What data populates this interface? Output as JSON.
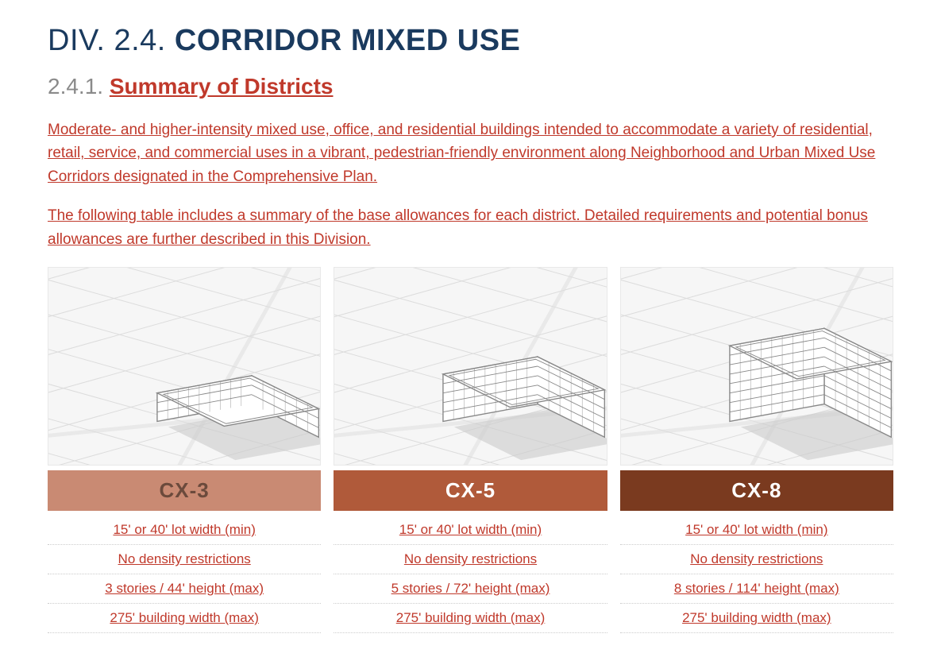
{
  "title_prefix": "DIV. 2.4. ",
  "title_main": "CORRIDOR MIXED USE",
  "subtitle_num": "2.4.1. ",
  "subtitle_link": "Summary of Districts",
  "para1": "Moderate- and higher-intensity mixed use, office, and residential buildings intended to accommodate a variety of residential, retail, service, and commercial uses in a vibrant, pedestrian-friendly environment along Neighborhood and Urban Mixed Use Corridors designated in the Comprehensive Plan.",
  "para2": "The following table includes a summary of the base allowances for each district. Detailed requirements and potential bonus allowances are further described in this Division.",
  "colors": {
    "title": "#1a3a5e",
    "accent_text": "#c0392b",
    "num_gray": "#8a8a8a",
    "illus_bg": "#f6f6f6",
    "illus_border": "#e8e8e8",
    "line_gray": "#888888",
    "building_fill": "#ffffff",
    "shadow": "#cccccc",
    "row_border": "#cccccc"
  },
  "districts": [
    {
      "code": "CX-3",
      "badge_bg": "#c98a73",
      "badge_text": "#6b4a3c",
      "stories": 3,
      "specs": [
        "15' or 40' lot width (min)",
        "No density restrictions",
        "3 stories / 44' height (max)",
        "275' building width (max)"
      ]
    },
    {
      "code": "CX-5",
      "badge_bg": "#b05a3a",
      "badge_text": "#ffffff",
      "stories": 5,
      "specs": [
        "15' or 40' lot width (min)",
        "No density restrictions",
        "5 stories / 72' height (max)",
        "275' building width (max)"
      ]
    },
    {
      "code": "CX-8",
      "badge_bg": "#7a3a1f",
      "badge_text": "#ffffff",
      "stories": 8,
      "specs": [
        "15' or 40' lot width (min)",
        "No density restrictions",
        "8 stories / 114' height (max)",
        "275' building width (max)"
      ]
    }
  ]
}
